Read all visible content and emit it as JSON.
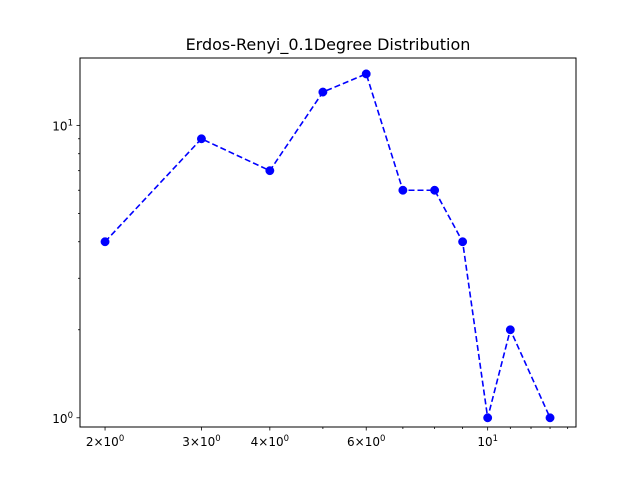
{
  "chart_data": {
    "type": "line",
    "title": "Erdos-Renyi_0.1Degree  Distribution",
    "xlabel": "",
    "ylabel": "",
    "x_scale": "log",
    "y_scale": "log",
    "xlim": [
      1.8,
      14.5
    ],
    "ylim": [
      0.93,
      17.0
    ],
    "grid": false,
    "series": [
      {
        "x": [
          2,
          3,
          4,
          5,
          6,
          7,
          8,
          9,
          10,
          11,
          13
        ],
        "values": [
          4,
          9,
          7,
          13,
          15,
          6,
          6,
          4,
          1,
          2,
          1
        ],
        "color": "#0000ff",
        "line_style": "dashed",
        "marker": "circle"
      }
    ],
    "x_ticks": [
      {
        "value": 2,
        "base": "2",
        "mult": "×",
        "ten": "10",
        "exp": "0"
      },
      {
        "value": 3,
        "base": "3",
        "mult": "×",
        "ten": "10",
        "exp": "0"
      },
      {
        "value": 4,
        "base": "4",
        "mult": "×",
        "ten": "10",
        "exp": "0"
      },
      {
        "value": 6,
        "base": "6",
        "mult": "×",
        "ten": "10",
        "exp": "0"
      },
      {
        "value": 10,
        "base": "",
        "mult": "",
        "ten": "10",
        "exp": "1"
      }
    ],
    "x_minor_ticks": [
      5,
      7,
      8,
      9,
      11,
      12,
      13,
      14
    ],
    "y_ticks": [
      {
        "value": 1,
        "ten": "10",
        "exp": "0"
      },
      {
        "value": 10,
        "ten": "10",
        "exp": "1"
      }
    ],
    "y_minor_ticks": [
      2,
      3,
      4,
      5,
      6,
      7,
      8,
      9
    ]
  }
}
